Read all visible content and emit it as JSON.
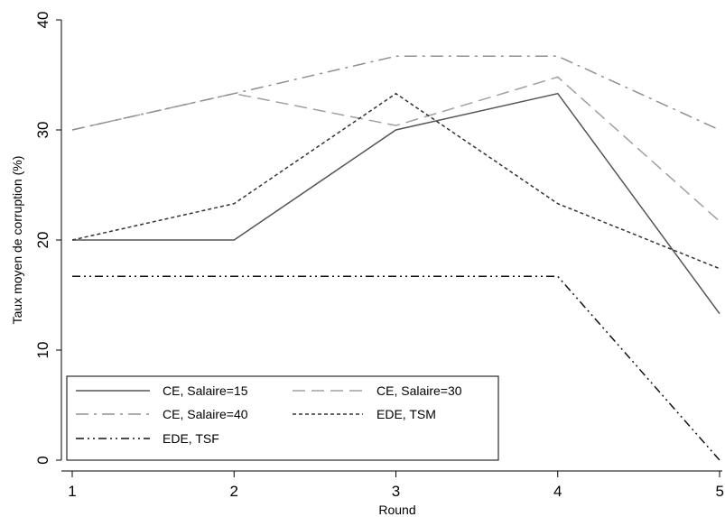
{
  "chart_data": {
    "type": "line",
    "title": "",
    "xlabel": "Round",
    "ylabel": "Taux moyen de corruption (%)",
    "x": [
      1,
      2,
      3,
      4,
      5
    ],
    "x_ticks": [
      "1",
      "2",
      "3",
      "4",
      "5"
    ],
    "y_ticks": [
      "0",
      "10",
      "20",
      "30",
      "40"
    ],
    "xlim": [
      1,
      5
    ],
    "ylim": [
      0,
      40
    ],
    "grid": false,
    "legend_position": "bottom-left",
    "series": [
      {
        "name": "CE, Salaire=15",
        "values": [
          20,
          20,
          30,
          33.3,
          13.3
        ],
        "color": "#555555",
        "dash": "solid"
      },
      {
        "name": "CE, Salaire=30",
        "values": [
          30,
          33.3,
          30.4,
          34.8,
          21.7
        ],
        "color": "#a0a0a0",
        "dash": "dash"
      },
      {
        "name": "CE, Salaire=40",
        "values": [
          30,
          33.3,
          36.7,
          36.7,
          30
        ],
        "color": "#909090",
        "dash": "dashdot"
      },
      {
        "name": "EDE, TSM",
        "values": [
          20,
          23.3,
          33.3,
          23.3,
          17.4
        ],
        "color": "#333333",
        "dash": "shortdash"
      },
      {
        "name": "EDE, TSF",
        "values": [
          16.7,
          16.7,
          16.7,
          16.7,
          0
        ],
        "color": "#111111",
        "dash": "dashdotdot"
      }
    ]
  }
}
